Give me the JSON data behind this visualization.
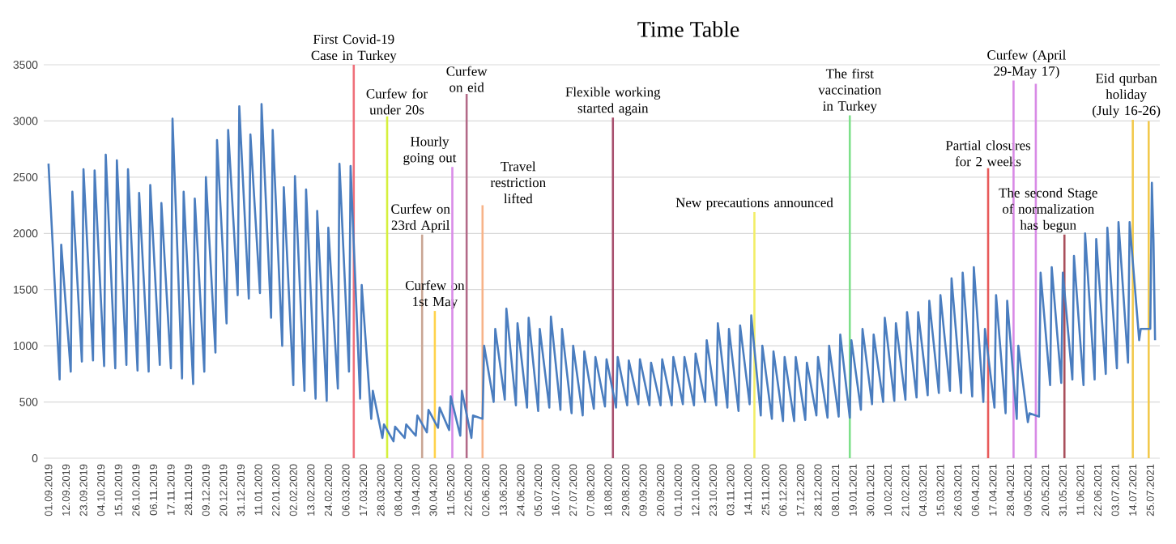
{
  "chart_data": {
    "type": "line",
    "title": "Time Table",
    "xlim": [
      "2019-08-29",
      "2021-07-31"
    ],
    "xticks": [
      {
        "value": "2019-09-01",
        "label": "01.09.2019"
      },
      {
        "value": "2019-09-12",
        "label": "12.09.2019"
      },
      {
        "value": "2019-09-23",
        "label": "23.09.2019"
      },
      {
        "value": "2019-10-04",
        "label": "04.10.2019"
      },
      {
        "value": "2019-10-15",
        "label": "15.10.2019"
      },
      {
        "value": "2019-10-26",
        "label": "26.10.2019"
      },
      {
        "value": "2019-11-06",
        "label": "06.11.2019"
      },
      {
        "value": "2019-11-17",
        "label": "17.11.2019"
      },
      {
        "value": "2019-11-28",
        "label": "28.11.2019"
      },
      {
        "value": "2019-12-09",
        "label": "09.12.2019"
      },
      {
        "value": "2019-12-20",
        "label": "20.12.2019"
      },
      {
        "value": "2019-12-31",
        "label": "31.12.2019"
      },
      {
        "value": "2020-01-11",
        "label": "11.01.2020"
      },
      {
        "value": "2020-01-22",
        "label": "22.01.2020"
      },
      {
        "value": "2020-02-02",
        "label": "02.02.2020"
      },
      {
        "value": "2020-02-13",
        "label": "13.02.2020"
      },
      {
        "value": "2020-02-24",
        "label": "24.02.2020"
      },
      {
        "value": "2020-03-06",
        "label": "06.03.2020"
      },
      {
        "value": "2020-03-17",
        "label": "17.03.2020"
      },
      {
        "value": "2020-03-28",
        "label": "28.03.2020"
      },
      {
        "value": "2020-04-08",
        "label": "08.04.2020"
      },
      {
        "value": "2020-04-19",
        "label": "19.04.2020"
      },
      {
        "value": "2020-04-30",
        "label": "30.04.2020"
      },
      {
        "value": "2020-05-11",
        "label": "11.05.2020"
      },
      {
        "value": "2020-05-22",
        "label": "22.05.2020"
      },
      {
        "value": "2020-06-02",
        "label": "02.06.2020"
      },
      {
        "value": "2020-06-13",
        "label": "13.06.2020"
      },
      {
        "value": "2020-06-24",
        "label": "24.06.2020"
      },
      {
        "value": "2020-07-05",
        "label": "05.07.2020"
      },
      {
        "value": "2020-07-16",
        "label": "16.07.2020"
      },
      {
        "value": "2020-07-27",
        "label": "27.07.2020"
      },
      {
        "value": "2020-08-07",
        "label": "07.08.2020"
      },
      {
        "value": "2020-08-18",
        "label": "18.08.2020"
      },
      {
        "value": "2020-08-29",
        "label": "29.08.2020"
      },
      {
        "value": "2020-09-09",
        "label": "09.09.2020"
      },
      {
        "value": "2020-09-20",
        "label": "20.09.2020"
      },
      {
        "value": "2020-10-01",
        "label": "01.10.2020"
      },
      {
        "value": "2020-10-12",
        "label": "12.10.2020"
      },
      {
        "value": "2020-10-23",
        "label": "23.10.2020"
      },
      {
        "value": "2020-11-03",
        "label": "03.11.2020"
      },
      {
        "value": "2020-11-14",
        "label": "14.11.2020"
      },
      {
        "value": "2020-11-25",
        "label": "25.11.2020"
      },
      {
        "value": "2020-12-06",
        "label": "06.12.2020"
      },
      {
        "value": "2020-12-17",
        "label": "17.12.2020"
      },
      {
        "value": "2020-12-28",
        "label": "28.12.2020"
      },
      {
        "value": "2021-01-08",
        "label": "08.01.2021"
      },
      {
        "value": "2021-01-19",
        "label": "19.01.2021"
      },
      {
        "value": "2021-01-30",
        "label": "30.01.2021"
      },
      {
        "value": "2021-02-10",
        "label": "10.02.2021"
      },
      {
        "value": "2021-02-21",
        "label": "21.02.2021"
      },
      {
        "value": "2021-03-04",
        "label": "04.03.2021"
      },
      {
        "value": "2021-03-15",
        "label": "15.03.2021"
      },
      {
        "value": "2021-03-26",
        "label": "26.03.2021"
      },
      {
        "value": "2021-04-06",
        "label": "06.04.2021"
      },
      {
        "value": "2021-04-17",
        "label": "17.04.2021"
      },
      {
        "value": "2021-04-28",
        "label": "28.04.2021"
      },
      {
        "value": "2021-05-09",
        "label": "09.05.2021"
      },
      {
        "value": "2021-05-20",
        "label": "20.05.2021"
      },
      {
        "value": "2021-05-31",
        "label": "31.05.2021"
      },
      {
        "value": "2021-06-11",
        "label": "11.06.2021"
      },
      {
        "value": "2021-06-22",
        "label": "22.06.2021"
      },
      {
        "value": "2021-07-03",
        "label": "03.07.2021"
      },
      {
        "value": "2021-07-14",
        "label": "14.07.2021"
      },
      {
        "value": "2021-07-25",
        "label": "25.07.2021"
      }
    ],
    "ylim": [
      0,
      3500
    ],
    "yticks": [
      0,
      500,
      1000,
      1500,
      2000,
      2500,
      3000,
      3500
    ],
    "grid": "y",
    "marker": "none",
    "x": [
      "2019-09-01",
      "2019-09-08",
      "2019-09-09",
      "2019-09-15",
      "2019-09-16",
      "2019-09-22",
      "2019-09-23",
      "2019-09-29",
      "2019-09-30",
      "2019-10-06",
      "2019-10-07",
      "2019-10-13",
      "2019-10-14",
      "2019-10-20",
      "2019-10-21",
      "2019-10-27",
      "2019-10-28",
      "2019-11-03",
      "2019-11-04",
      "2019-11-10",
      "2019-11-11",
      "2019-11-17",
      "2019-11-18",
      "2019-11-24",
      "2019-11-25",
      "2019-12-01",
      "2019-12-02",
      "2019-12-08",
      "2019-12-09",
      "2019-12-15",
      "2019-12-16",
      "2019-12-22",
      "2019-12-23",
      "2019-12-29",
      "2019-12-30",
      "2020-01-05",
      "2020-01-06",
      "2020-01-12",
      "2020-01-13",
      "2020-01-19",
      "2020-01-20",
      "2020-01-26",
      "2020-01-27",
      "2020-02-02",
      "2020-02-03",
      "2020-02-09",
      "2020-02-10",
      "2020-02-16",
      "2020-02-17",
      "2020-02-23",
      "2020-02-24",
      "2020-03-01",
      "2020-03-02",
      "2020-03-08",
      "2020-03-09",
      "2020-03-15",
      "2020-03-16",
      "2020-03-22",
      "2020-03-23",
      "2020-03-29",
      "2020-03-30",
      "2020-04-05",
      "2020-04-06",
      "2020-04-12",
      "2020-04-13",
      "2020-04-19",
      "2020-04-20",
      "2020-04-26",
      "2020-04-27",
      "2020-05-03",
      "2020-05-04",
      "2020-05-10",
      "2020-05-11",
      "2020-05-17",
      "2020-05-18",
      "2020-05-24",
      "2020-05-25",
      "2020-05-31",
      "2020-06-01",
      "2020-06-07",
      "2020-06-08",
      "2020-06-14",
      "2020-06-15",
      "2020-06-21",
      "2020-06-22",
      "2020-06-28",
      "2020-06-29",
      "2020-07-05",
      "2020-07-06",
      "2020-07-12",
      "2020-07-13",
      "2020-07-19",
      "2020-07-20",
      "2020-07-26",
      "2020-07-27",
      "2020-08-02",
      "2020-08-03",
      "2020-08-09",
      "2020-08-10",
      "2020-08-16",
      "2020-08-17",
      "2020-08-23",
      "2020-08-24",
      "2020-08-30",
      "2020-08-31",
      "2020-09-06",
      "2020-09-07",
      "2020-09-13",
      "2020-09-14",
      "2020-09-20",
      "2020-09-21",
      "2020-09-27",
      "2020-09-28",
      "2020-10-04",
      "2020-10-05",
      "2020-10-11",
      "2020-10-12",
      "2020-10-18",
      "2020-10-19",
      "2020-10-25",
      "2020-10-26",
      "2020-11-01",
      "2020-11-02",
      "2020-11-08",
      "2020-11-09",
      "2020-11-15",
      "2020-11-16",
      "2020-11-22",
      "2020-11-23",
      "2020-11-29",
      "2020-11-30",
      "2020-12-06",
      "2020-12-07",
      "2020-12-13",
      "2020-12-14",
      "2020-12-20",
      "2020-12-21",
      "2020-12-27",
      "2020-12-28",
      "2021-01-03",
      "2021-01-04",
      "2021-01-10",
      "2021-01-11",
      "2021-01-17",
      "2021-01-18",
      "2021-01-24",
      "2021-01-25",
      "2021-01-31",
      "2021-02-01",
      "2021-02-07",
      "2021-02-08",
      "2021-02-14",
      "2021-02-15",
      "2021-02-21",
      "2021-02-22",
      "2021-02-28",
      "2021-03-01",
      "2021-03-07",
      "2021-03-08",
      "2021-03-14",
      "2021-03-15",
      "2021-03-21",
      "2021-03-22",
      "2021-03-28",
      "2021-03-29",
      "2021-04-04",
      "2021-04-05",
      "2021-04-11",
      "2021-04-12",
      "2021-04-18",
      "2021-04-19",
      "2021-04-25",
      "2021-04-26",
      "2021-05-02",
      "2021-05-03",
      "2021-05-09",
      "2021-05-10",
      "2021-05-16",
      "2021-05-17",
      "2021-05-23",
      "2021-05-24",
      "2021-05-30",
      "2021-05-31",
      "2021-06-06",
      "2021-06-07",
      "2021-06-13",
      "2021-06-14",
      "2021-06-20",
      "2021-06-21",
      "2021-06-27",
      "2021-06-28",
      "2021-07-04",
      "2021-07-05",
      "2021-07-11",
      "2021-07-12",
      "2021-07-18",
      "2021-07-19",
      "2021-07-25",
      "2021-07-26",
      "2021-07-27",
      "2021-07-28"
    ],
    "series": [
      {
        "color": "#4a7dbf",
        "values": [
          2620,
          700,
          1900,
          770,
          2370,
          860,
          2570,
          870,
          2560,
          820,
          2700,
          800,
          2650,
          830,
          2570,
          780,
          2360,
          770,
          2430,
          830,
          2270,
          800,
          3020,
          710,
          2370,
          660,
          2310,
          770,
          2500,
          940,
          2830,
          1200,
          2920,
          1450,
          3130,
          1420,
          2880,
          1470,
          3150,
          1250,
          2920,
          1000,
          2410,
          650,
          2510,
          600,
          2390,
          530,
          2200,
          510,
          2050,
          620,
          2620,
          770,
          2600,
          530,
          1540,
          350,
          600,
          180,
          300,
          150,
          280,
          180,
          300,
          200,
          380,
          230,
          430,
          270,
          450,
          250,
          550,
          200,
          600,
          180,
          380,
          350,
          1000,
          500,
          1150,
          520,
          1330,
          470,
          1200,
          450,
          1250,
          420,
          1150,
          450,
          1260,
          430,
          1150,
          400,
          1000,
          380,
          950,
          440,
          900,
          460,
          880,
          450,
          900,
          470,
          870,
          480,
          880,
          470,
          850,
          470,
          880,
          470,
          900,
          480,
          900,
          470,
          930,
          500,
          1050,
          470,
          1200,
          450,
          1150,
          420,
          1180,
          480,
          1270,
          380,
          1000,
          350,
          950,
          330,
          900,
          330,
          900,
          340,
          850,
          380,
          900,
          360,
          1000,
          370,
          1100,
          360,
          1050,
          430,
          1150,
          480,
          1100,
          500,
          1250,
          510,
          1200,
          520,
          1300,
          540,
          1300,
          560,
          1400,
          580,
          1450,
          600,
          1600,
          580,
          1650,
          550,
          1700,
          500,
          1150,
          450,
          1450,
          400,
          1400,
          350,
          1000,
          320,
          400,
          370,
          1650,
          650,
          1700,
          670,
          1650,
          700,
          1800,
          650,
          2000,
          700,
          1950,
          750,
          2050,
          800,
          2100,
          850,
          2100,
          1050,
          1150,
          1150,
          2450,
          1950,
          1050
        ]
      }
    ],
    "ref_lines": [
      {
        "axis": "x",
        "value": "2020-03-11",
        "label": "First Covid-19 Case in Turkey",
        "color": "#ef6f7a"
      },
      {
        "axis": "x",
        "value": "2020-04-01",
        "label": "Curfew for under 20s",
        "color": "#d6f03c"
      },
      {
        "axis": "x",
        "value": "2020-04-23",
        "label": "Curfew on 23rd April",
        "color": "#c9a593"
      },
      {
        "axis": "x",
        "value": "2020-05-01",
        "label": "Curfew on 1st May",
        "color": "#ffd24a"
      },
      {
        "axis": "x",
        "value": "2020-05-12",
        "label": "Hourly going out",
        "color": "#d98ce8"
      },
      {
        "axis": "x",
        "value": "2020-05-21",
        "label": "Curfew on eid",
        "color": "#b36a88"
      },
      {
        "axis": "x",
        "value": "2020-05-31",
        "label": "Travel restriction lifted",
        "color": "#f7b388"
      },
      {
        "axis": "x",
        "value": "2020-08-21",
        "label": "Flexible working started again",
        "color": "#a8506e"
      },
      {
        "axis": "x",
        "value": "2020-11-18",
        "label": "New precautions announced",
        "color": "#f2ee66"
      },
      {
        "axis": "x",
        "value": "2021-01-17",
        "label": "The first vaccination in Turkey",
        "color": "#7ee08a"
      },
      {
        "axis": "x",
        "value": "2021-04-14",
        "label": "Partial closures for 2 weeks",
        "color": "#e85a5a"
      },
      {
        "axis": "x",
        "value": "2021-04-30",
        "label": "Curfew (April 29-May 17)",
        "color": "#d88ae6"
      },
      {
        "axis": "x",
        "value": "2021-05-14",
        "color": "#d88ae6"
      },
      {
        "axis": "x",
        "value": "2021-06-01",
        "label": "The second Stage of normalization has begun",
        "color": "#a94f5c"
      },
      {
        "axis": "x",
        "value": "2021-07-14",
        "label": "Eid qurban holiday (July 16-26)",
        "color": "#f2c94c"
      },
      {
        "axis": "x",
        "value": "2021-07-24",
        "color": "#f2c94c"
      }
    ]
  }
}
